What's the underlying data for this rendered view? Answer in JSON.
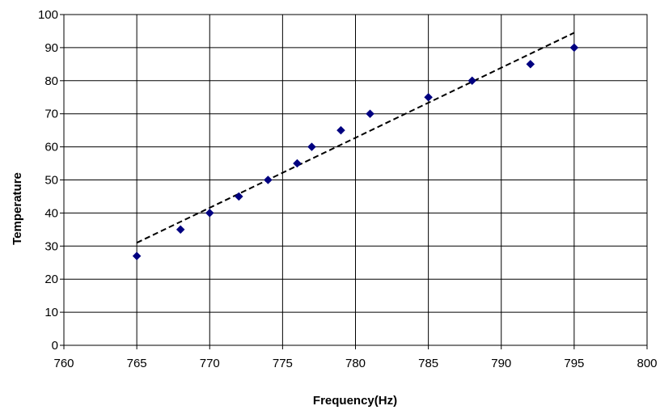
{
  "chart_data": {
    "type": "scatter",
    "title": "",
    "xlabel": "Frequency(Hz)",
    "ylabel": "Temperature",
    "xlim": [
      760,
      800
    ],
    "ylim": [
      0,
      100
    ],
    "xticks": [
      "760",
      "765",
      "770",
      "775",
      "780",
      "785",
      "790",
      "795",
      "800"
    ],
    "yticks": [
      "0",
      "10",
      "20",
      "30",
      "40",
      "50",
      "60",
      "70",
      "80",
      "90",
      "100"
    ],
    "grid": true,
    "legend": "none",
    "series": [
      {
        "x": [
          765,
          768,
          770,
          772,
          774,
          776,
          777,
          779,
          781,
          785,
          788,
          792,
          795
        ],
        "y": [
          27,
          35,
          40,
          45,
          50,
          55,
          60,
          65,
          70,
          75,
          80,
          85,
          90
        ],
        "marker": "diamond",
        "color": "#000080"
      }
    ],
    "trendline": {
      "style": "dashed",
      "color": "#000000",
      "x": [
        765,
        795
      ],
      "y": [
        31,
        94.5
      ]
    }
  }
}
